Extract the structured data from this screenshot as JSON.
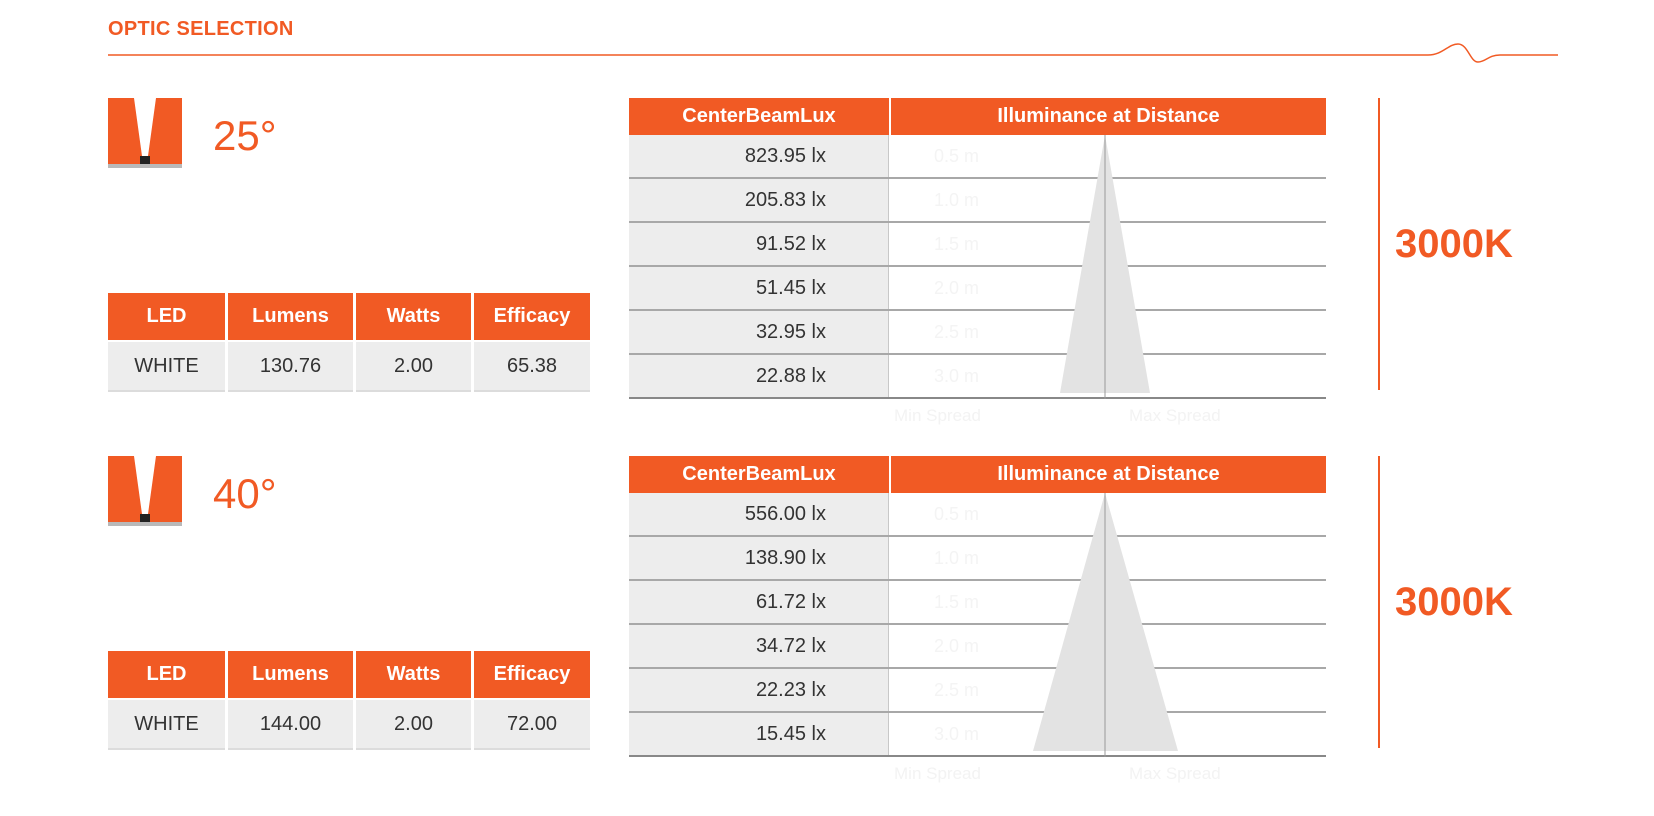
{
  "header": {
    "title": "OPTIC SELECTION"
  },
  "colors": {
    "accent": "#f15a24",
    "cell_bg": "#ededed",
    "beam": "#e2e2e2"
  },
  "spec_headers": [
    "LED",
    "Lumens",
    "Watts",
    "Efficacy"
  ],
  "lux_headers": {
    "center": "CenterBeamLux",
    "distance": "Illuminance at Distance"
  },
  "sections": [
    {
      "angle": "25°",
      "cct": "3000K",
      "specs": {
        "led": "WHITE",
        "lumens": "130.76",
        "watts": "2.00",
        "efficacy": "65.38"
      },
      "lux_rows": [
        {
          "lux": "823.95 lx",
          "distance": "0.5 m"
        },
        {
          "lux": "205.83 lx",
          "distance": "1.0 m"
        },
        {
          "lux": "91.52 lx",
          "distance": "1.5 m"
        },
        {
          "lux": "51.45 lx",
          "distance": "2.0 m"
        },
        {
          "lux": "32.95 lx",
          "distance": "2.5 m"
        },
        {
          "lux": "22.88 lx",
          "distance": "3.0 m"
        }
      ],
      "spreads": [
        "Min Spread",
        "Max Spread"
      ]
    },
    {
      "angle": "40°",
      "cct": "3000K",
      "specs": {
        "led": "WHITE",
        "lumens": "144.00",
        "watts": "2.00",
        "efficacy": "72.00"
      },
      "lux_rows": [
        {
          "lux": "556.00 lx",
          "distance": "0.5 m"
        },
        {
          "lux": "138.90 lx",
          "distance": "1.0 m"
        },
        {
          "lux": "61.72 lx",
          "distance": "1.5 m"
        },
        {
          "lux": "34.72 lx",
          "distance": "2.0 m"
        },
        {
          "lux": "22.23 lx",
          "distance": "2.5 m"
        },
        {
          "lux": "15.45 lx",
          "distance": "3.0 m"
        }
      ],
      "spreads": [
        "Min Spread",
        "Max Spread"
      ]
    }
  ]
}
